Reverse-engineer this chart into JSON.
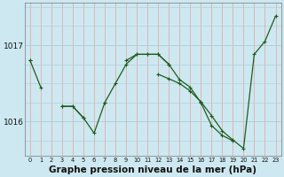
{
  "title": "Graphe pression niveau de la mer (hPa)",
  "hours": [
    0,
    1,
    2,
    3,
    4,
    5,
    6,
    7,
    8,
    9,
    10,
    11,
    12,
    13,
    14,
    15,
    16,
    17,
    18,
    19,
    20,
    21,
    22,
    23
  ],
  "line1_y": [
    1016.8,
    1016.45,
    null,
    1016.2,
    1016.2,
    1016.05,
    1015.85,
    1016.25,
    1016.5,
    1016.75,
    1016.88,
    1016.88,
    1016.88,
    1016.75,
    null,
    null,
    null,
    null,
    null,
    null,
    null,
    null,
    null,
    null
  ],
  "line2_y": [
    1016.8,
    null,
    null,
    null,
    null,
    null,
    null,
    null,
    null,
    null,
    null,
    null,
    1016.62,
    1016.56,
    1016.5,
    1016.4,
    1016.26,
    1016.08,
    1015.88,
    1015.76,
    1015.65,
    1016.88,
    1017.05,
    1017.38
  ],
  "line3_y": [
    null,
    null,
    null,
    1016.2,
    1016.2,
    1016.05,
    null,
    1016.25,
    null,
    1016.8,
    1016.88,
    1016.88,
    1016.88,
    1016.75,
    1016.55,
    1016.45,
    1016.25,
    1015.95,
    1015.82,
    1015.75,
    null,
    null,
    null,
    null
  ],
  "ylim": [
    1015.55,
    1017.55
  ],
  "yticks": [
    1016,
    1017
  ],
  "bg_color": "#cde8f0",
  "line_color": "#1e5c1e",
  "hgrid_color": "#a8cdd8",
  "vgrid_color": "#e8aaaa",
  "tick_color": "#111111",
  "title_fontsize": 7.5,
  "title_fontweight": "bold"
}
